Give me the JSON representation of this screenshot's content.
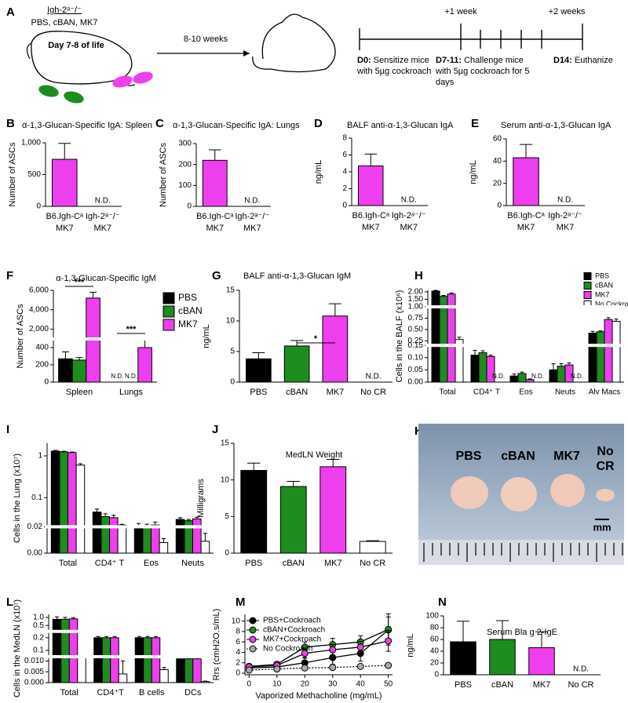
{
  "panel_a": {
    "panel": "A",
    "strain": "Igh-2ᵃ⁻/⁻",
    "treatments": "PBS, cBAN, MK7",
    "age": "Day 7-8 of life",
    "interval": "8-10 weeks",
    "timeline": {
      "week1": "+1 week",
      "week2": "+2 weeks",
      "d0_label": "D0:",
      "d0_lines": [
        "Sensitize mice",
        "with 5µg cockroach"
      ],
      "d7_label": "D7-11:",
      "d7_lines": [
        "Challenge mice",
        "with 5µg cockroach for 5",
        "days"
      ],
      "d14_label": "D14:",
      "d14_lines": [
        "Euthanize"
      ]
    }
  },
  "panel_k": {
    "panel": "K",
    "labels": [
      "PBS",
      "cBAN",
      "MK7"
    ],
    "nocr": [
      "No",
      "CR"
    ],
    "scale": "mm"
  },
  "chart_data": [
    {
      "panel": "B",
      "type": "bar",
      "title": "α-1,3-Glucan-Specific IgA: Spleen",
      "ylabel": "Number of ASCs",
      "categories": [
        "B6.Igh-Cᵃ",
        "Igh-2ᵃ⁻/⁻"
      ],
      "category_sublabel": "MK7",
      "values": [
        740,
        null
      ],
      "errors": [
        250,
        null
      ],
      "value_labels": [
        null,
        "N.D."
      ],
      "color": "#ee3fee",
      "ylim": [
        0,
        1000
      ],
      "yticks": [
        0,
        500,
        {
          "value": 1000,
          "label": "1,000"
        }
      ]
    },
    {
      "panel": "C",
      "type": "bar",
      "title": "α-1,3-Glucan-Specific IgA: Lungs",
      "ylabel": "Number of ASCs",
      "categories": [
        "B6.Igh-Cᵃ",
        "Igh-2ᵃ⁻/⁻"
      ],
      "category_sublabel": "MK7",
      "values": [
        220,
        null
      ],
      "errors": [
        50,
        null
      ],
      "value_labels": [
        null,
        "N.D."
      ],
      "color": "#ee3fee",
      "ylim": [
        0,
        300
      ],
      "yticks": [
        0,
        100,
        200,
        300
      ]
    },
    {
      "panel": "D",
      "type": "bar",
      "title": "BALF anti-α-1,3-Glucan IgA",
      "ylabel": "ng/mL",
      "categories": [
        "B6.Igh-Cᵃ",
        "Igh-2ᵃ⁻/⁻"
      ],
      "category_sublabel": "MK7",
      "values": [
        4.7,
        null
      ],
      "errors": [
        1.4,
        null
      ],
      "value_labels": [
        null,
        "N.D."
      ],
      "color": "#ee3fee",
      "ylim": [
        0,
        8
      ],
      "yticks": [
        0,
        2,
        4,
        6,
        8
      ]
    },
    {
      "panel": "E",
      "type": "bar",
      "title": "Serum anti-α-1,3-Glucan IgA",
      "ylabel": "ng/mL",
      "categories": [
        "B6.Igh-Cᵃ",
        "Igh-2ᵃ⁻/⁻"
      ],
      "category_sublabel": "MK7",
      "values": [
        43,
        null
      ],
      "errors": [
        12,
        null
      ],
      "value_labels": [
        null,
        "N.D."
      ],
      "color": "#ee3fee",
      "ylim": [
        0,
        60
      ],
      "yticks": [
        0,
        20,
        40,
        60
      ]
    },
    {
      "panel": "F",
      "type": "bar",
      "title": "α-1,3-Glucan-Specific IgM",
      "ylabel": "Number of ASCs",
      "categories": [
        "Spleen",
        "Lungs"
      ],
      "legend": "right",
      "annotations": [
        "***",
        "***"
      ],
      "series": [
        {
          "name": "PBS",
          "color": "#000000",
          "values": [
            270,
            null
          ],
          "errors": [
            80,
            null
          ],
          "value_labels": [
            null,
            "N.D."
          ]
        },
        {
          "name": "cBAN",
          "color": "#1e8c1e",
          "values": [
            255,
            null
          ],
          "errors": [
            30,
            null
          ],
          "value_labels": [
            null,
            "N.D."
          ]
        },
        {
          "name": "MK7",
          "color": "#ee3fee",
          "values": [
            5200,
            400
          ],
          "errors": [
            600,
            100
          ]
        }
      ],
      "y_segments": [
        {
          "ylim": [
            0,
            500
          ],
          "yticks": [
            0,
            200,
            400
          ]
        },
        {
          "ylim": [
            1000,
            6000
          ],
          "yticks": [
            {
              "value": 2000,
              "label": "2,000"
            },
            {
              "value": 4000,
              "label": "4,000"
            },
            {
              "value": 6000,
              "label": "6,000"
            }
          ]
        }
      ]
    },
    {
      "panel": "G",
      "type": "bar",
      "title": "BALF anti-α-1,3-Glucan IgM",
      "ylabel": "ng/mL",
      "categories": [
        "PBS",
        "cBAN",
        "MK7",
        "No CR"
      ],
      "annotations": [
        "*"
      ],
      "values": [
        3.8,
        5.9,
        10.8,
        null
      ],
      "errors": [
        1.0,
        0.9,
        2.0,
        null
      ],
      "value_labels": [
        null,
        null,
        null,
        "N.D."
      ],
      "colors": [
        "#000000",
        "#1e8c1e",
        "#ee3fee",
        "#ffffff"
      ],
      "ylim": [
        0,
        15
      ],
      "yticks": [
        0,
        5,
        10,
        15
      ]
    },
    {
      "panel": "H",
      "type": "bar",
      "ylabel": "Cells in the BALF (x10⁶)",
      "categories": [
        "Total",
        "CD4⁺ T",
        "Eos",
        "Neuts",
        "Alv Macs"
      ],
      "legend": "top-right",
      "series": [
        {
          "name": "PBS",
          "color": "#000000",
          "values": [
            2.05,
            0.11,
            0.025,
            0.05,
            0.42
          ],
          "errors": [
            0.05,
            0.02,
            0.008,
            0.025,
            0.04
          ]
        },
        {
          "name": "cBAN",
          "color": "#1e8c1e",
          "values": [
            1.7,
            0.12,
            0.035,
            0.065,
            0.45
          ],
          "errors": [
            0.06,
            0.008,
            0.006,
            0.01,
            0.02
          ]
        },
        {
          "name": "MK7",
          "color": "#ee3fee",
          "values": [
            1.85,
            0.105,
            0.01,
            0.07,
            0.72
          ],
          "errors": [
            0.07,
            0.005,
            0.003,
            0.008,
            0.04
          ]
        },
        {
          "name": "No Cockroach",
          "color": "#ffffff",
          "values": [
            0.28,
            null,
            null,
            null,
            0.68
          ],
          "errors": [
            0.05,
            null,
            null,
            null,
            0.05
          ],
          "value_labels": [
            null,
            "N.D.",
            "N.D.",
            "N.D.",
            null
          ]
        }
      ],
      "y_segments": [
        {
          "ylim": [
            0,
            0.15
          ],
          "yticks": [
            {
              "value": 0,
              "label": "0.00"
            },
            {
              "value": 0.05,
              "label": "0.05"
            },
            {
              "value": 0.1,
              "label": "0.10"
            },
            {
              "value": 0.15,
              "label": "0.15"
            }
          ]
        },
        {
          "ylim": [
            0.15,
            1.0
          ],
          "yticks": [
            {
              "value": 0.25,
              "label": "0.25"
            },
            {
              "value": 0.5,
              "label": "0.50"
            },
            {
              "value": 0.75,
              "label": "0.75"
            },
            {
              "value": 1.0,
              "label": "1.00"
            }
          ]
        },
        {
          "ylim": [
            1.0,
            2.1
          ],
          "yticks": [
            {
              "value": 1.5,
              "label": "1.50"
            },
            {
              "value": 2.0,
              "label": "2.00"
            }
          ]
        }
      ]
    },
    {
      "panel": "I",
      "type": "bar",
      "ylabel": "Cells in the Lung (x10⁷)",
      "categories": [
        "Total",
        "CD4⁺ T",
        "Eos",
        "Neuts"
      ],
      "series": [
        {
          "name": "PBS",
          "color": "#000000",
          "values": [
            1.3,
            0.045,
            0.02,
            0.03
          ],
          "errors": [
            0.05,
            0.008,
            0.004,
            0.003
          ]
        },
        {
          "name": "cBAN",
          "color": "#1e8c1e",
          "values": [
            1.25,
            0.035,
            0.02,
            0.028
          ],
          "errors": [
            0.04,
            0.006,
            0.003,
            0.002
          ]
        },
        {
          "name": "MK7",
          "color": "#ee3fee",
          "values": [
            1.2,
            0.033,
            0.022,
            0.031
          ],
          "errors": [
            0.04,
            0.005,
            0.004,
            0.003
          ]
        },
        {
          "name": "No Cockroach",
          "color": "#ffffff",
          "values": [
            0.6,
            0.022,
            0.008,
            0.009
          ],
          "errors": [
            0.05,
            0.001,
            0.003,
            0.006
          ]
        }
      ],
      "y_segments": [
        {
          "ylim": [
            0,
            0.02
          ],
          "yticks": [
            {
              "value": 0,
              "label": "0.00"
            }
          ]
        },
        {
          "ylim": [
            0.02,
            2
          ],
          "scale": "log",
          "yticks": [
            0.02,
            0.1,
            1
          ]
        }
      ]
    },
    {
      "panel": "J",
      "type": "bar",
      "title": "MedLN Weight",
      "ylabel": "Milligrams",
      "categories": [
        "PBS",
        "cBAN",
        "MK7",
        "No CR"
      ],
      "values": [
        11.3,
        9.1,
        11.8,
        1.6
      ],
      "errors": [
        1.0,
        0.7,
        1.0,
        0.1
      ],
      "colors": [
        "#000000",
        "#1e8c1e",
        "#ee3fee",
        "#ffffff"
      ],
      "ylim": [
        0,
        15
      ],
      "yticks": [
        0,
        5,
        10,
        15
      ]
    },
    {
      "panel": "L",
      "type": "bar",
      "ylabel": "Cells in the MedLN (x10⁷)",
      "categories": [
        "Total",
        "CD4⁺T",
        "B cells",
        "DCs"
      ],
      "series": [
        {
          "name": "PBS",
          "color": "#000000",
          "values": [
            0.85,
            0.2,
            0.2,
            0.011
          ],
          "errors": [
            0.2,
            0.01,
            0.01,
            0.0005
          ]
        },
        {
          "name": "cBAN",
          "color": "#1e8c1e",
          "values": [
            0.85,
            0.2,
            0.2,
            0.011
          ],
          "errors": [
            0.15,
            0.01,
            0.01,
            0.0005
          ]
        },
        {
          "name": "MK7",
          "color": "#ee3fee",
          "values": [
            0.88,
            0.2,
            0.2,
            0.011
          ],
          "errors": [
            0.1,
            0.01,
            0.01,
            0.0005
          ]
        },
        {
          "name": "No Cockroach",
          "color": "#ffffff",
          "values": [
            0.0115,
            0.004,
            0.006,
            0.0005
          ],
          "errors": [
            null,
            0.006,
            0.001,
            0.0002
          ]
        }
      ],
      "y_segments": [
        {
          "ylim": [
            0,
            0.012
          ],
          "yticks": [
            {
              "value": 0,
              "label": "0.000"
            },
            {
              "value": 0.005,
              "label": "0.005"
            },
            {
              "value": 0.01,
              "label": "0.010"
            }
          ]
        },
        {
          "ylim": [
            0.05,
            0.25
          ],
          "yticks": [
            0.1,
            0.2
          ]
        },
        {
          "ylim": [
            0.3,
            1.3
          ],
          "scale": "log",
          "yticks": [
            0.5,
            {
              "value": 1,
              "label": "1.0"
            }
          ]
        }
      ]
    },
    {
      "panel": "M",
      "type": "line",
      "ylabel": "Rrs (cmH2O.s/mL)",
      "xlabel": "Vaporized Methacholine (mg/mL)",
      "legend": "top-left",
      "line_color": "#000000",
      "x": [
        0,
        10,
        20,
        30,
        40,
        50
      ],
      "series": [
        {
          "name": "PBS+Cockroach",
          "color": "#000000",
          "values": [
            1.0,
            1.2,
            2.0,
            3.0,
            3.8,
            8.3
          ],
          "errors": [
            0.4,
            0.4,
            1.0,
            1.3,
            1.5,
            2.5
          ]
        },
        {
          "name": "cBAN+Cockroach",
          "color": "#1e8c1e",
          "values": [
            1.3,
            1.7,
            5.0,
            5.5,
            6.0,
            8.4
          ],
          "errors": [
            0.5,
            0.5,
            1.0,
            1.2,
            1.2,
            3.0
          ]
        },
        {
          "name": "MK7+Cockroach",
          "color": "#ee3fee",
          "values": [
            1.2,
            1.5,
            3.8,
            4.5,
            5.0,
            6.2
          ],
          "errors": [
            0.4,
            0.4,
            0.9,
            1.0,
            1.1,
            2.0
          ]
        },
        {
          "name": "No Cockroach",
          "color": "#aaaaaa",
          "linestyle": "dotted",
          "values": [
            0.6,
            0.8,
            1.0,
            1.1,
            1.3,
            1.5
          ],
          "errors": [
            0.1,
            0.1,
            0.1,
            0.1,
            0.1,
            0.1
          ]
        }
      ],
      "xlim": [
        -1.5,
        51.5
      ],
      "xticks": [
        0,
        10,
        20,
        30,
        40,
        50
      ],
      "ylim": [
        -0.3,
        11.3
      ],
      "yticks": [
        0,
        2,
        4,
        6,
        8,
        10
      ]
    },
    {
      "panel": "N",
      "type": "bar",
      "title": "Serum Bla g 2-IgE",
      "ylabel": "ng/mL",
      "categories": [
        "PBS",
        "cBAN",
        "MK7",
        "No CR"
      ],
      "values": [
        56,
        60,
        46,
        null
      ],
      "errors": [
        35,
        32,
        27,
        null
      ],
      "value_labels": [
        null,
        null,
        null,
        "N.D."
      ],
      "colors": [
        "#000000",
        "#1e8c1e",
        "#ee3fee",
        "#ffffff"
      ],
      "ylim": [
        0,
        100
      ],
      "yticks": [
        0,
        20,
        40,
        60,
        80,
        100
      ]
    }
  ]
}
